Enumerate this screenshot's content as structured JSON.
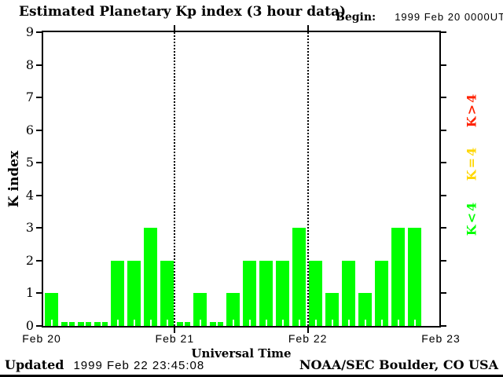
{
  "header": {
    "title": "Estimated Planetary Kp index (3 hour data)",
    "begin_label": "Begin:",
    "begin_value": "1999 Feb 20 0000UT"
  },
  "footer": {
    "updated_label": "Updated",
    "updated_value": "1999 Feb 22 23:45:08",
    "source": "NOAA/SEC Boulder, CO USA"
  },
  "chart_data": {
    "type": "bar",
    "title": "Estimated Planetary Kp index (3 hour data)",
    "begin": "1999 Feb 20 0000UT",
    "updated": "1999 Feb 22 23:45:08",
    "xlabel": "Universal Time",
    "ylabel": "K index",
    "ylim": [
      0,
      9
    ],
    "y_ticks": [
      0,
      1,
      2,
      3,
      4,
      5,
      6,
      7,
      8,
      9
    ],
    "x_tick_labels": [
      "Feb 20",
      "Feb 21",
      "Feb 22",
      "Feb 23"
    ],
    "hours_per_bar": 3,
    "bars_per_day": 8,
    "grid": "dotted-day-separators",
    "bar_color": "#00ff00",
    "values": [
      1,
      0,
      0,
      0,
      2,
      2,
      3,
      2,
      0,
      1,
      0,
      1,
      2,
      2,
      2,
      3,
      2,
      1,
      2,
      1,
      2,
      3,
      3,
      null
    ],
    "legend_position": "right-rotated",
    "legend": [
      {
        "label": "K>4",
        "color": "#ff2200"
      },
      {
        "label": "K=4",
        "color": "#ffd700"
      },
      {
        "label": "K<4",
        "color": "#00ff00"
      }
    ]
  }
}
